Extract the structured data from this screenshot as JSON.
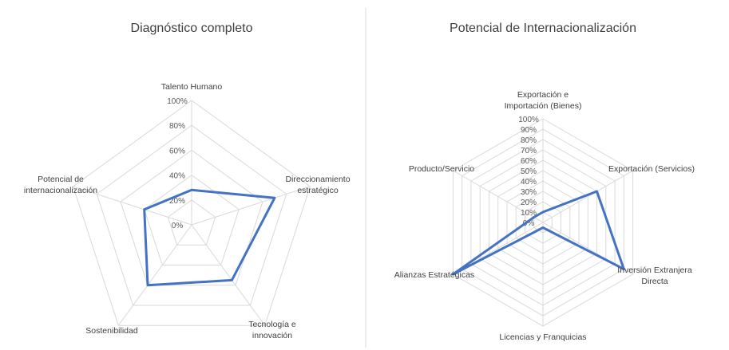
{
  "chart_data": [
    {
      "type": "radar",
      "title": "Diagnóstico completo",
      "categories": [
        "Talento Humano",
        "Direccionamiento estratégico",
        "Tecnología e innovación",
        "Sostenibilidad",
        "Potencial de internacionalización"
      ],
      "ticks": [
        "0%",
        "20%",
        "40%",
        "60%",
        "80%",
        "100%"
      ],
      "ylim": [
        0,
        100
      ],
      "grid": true,
      "series": [
        {
          "values": [
            28,
            70,
            55,
            60,
            40
          ],
          "color": "#4472c4"
        }
      ]
    },
    {
      "type": "radar",
      "title": "Potencial de Internacionalización",
      "categories": [
        "Exportación e Importación (Bienes)",
        "Exportación (Servicios)",
        "Inversión Extranjera Directa",
        "Licencias y Franquicias",
        "Alianzas Estratégicas",
        "Producto/Servicio"
      ],
      "ticks": [
        "0%",
        "10%",
        "20%",
        "30%",
        "40%",
        "50%",
        "60%",
        "70%",
        "80%",
        "90%",
        "100%"
      ],
      "ylim": [
        0,
        100
      ],
      "grid": true,
      "series": [
        {
          "values": [
            10,
            60,
            90,
            5,
            100,
            10
          ],
          "color": "#4472c4"
        }
      ]
    }
  ]
}
